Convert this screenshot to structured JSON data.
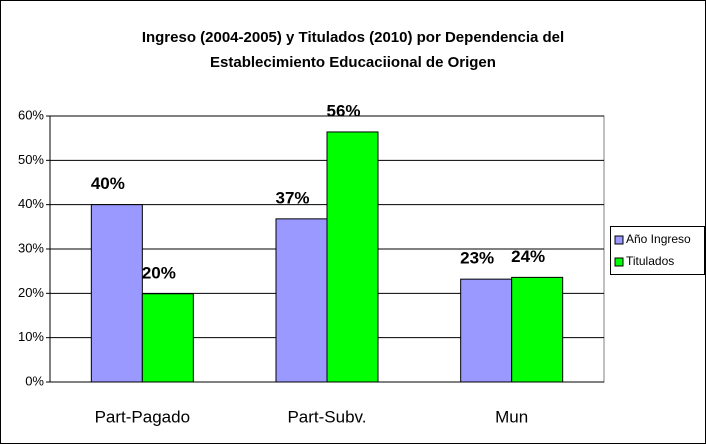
{
  "chart_data": {
    "type": "bar",
    "title": [
      "Ingreso (2004-2005) y Titulados (2010) por Dependencia del",
      "Establecimiento Educaciional de Origen"
    ],
    "categories": [
      "Part-Pagado",
      "Part-Subv.",
      "Mun"
    ],
    "series": [
      {
        "name": "Año Ingreso",
        "color": "#9999ff",
        "values": [
          40,
          36.8,
          23.2
        ],
        "value_labels": [
          "40%",
          "37%",
          "23%"
        ]
      },
      {
        "name": "Titulados",
        "color": "#00ff00",
        "values": [
          19.9,
          56.4,
          23.6
        ],
        "value_labels": [
          "20%",
          "56%",
          "24%"
        ]
      }
    ],
    "ylim": [
      0,
      60
    ],
    "yticks": [
      {
        "value": 0,
        "label": "0%"
      },
      {
        "value": 10,
        "label": "10%"
      },
      {
        "value": 20,
        "label": "20%"
      },
      {
        "value": 30,
        "label": "30%"
      },
      {
        "value": 40,
        "label": "40%"
      },
      {
        "value": 50,
        "label": "50%"
      },
      {
        "value": 60,
        "label": "60%"
      }
    ],
    "grid": true,
    "legend": "right"
  }
}
